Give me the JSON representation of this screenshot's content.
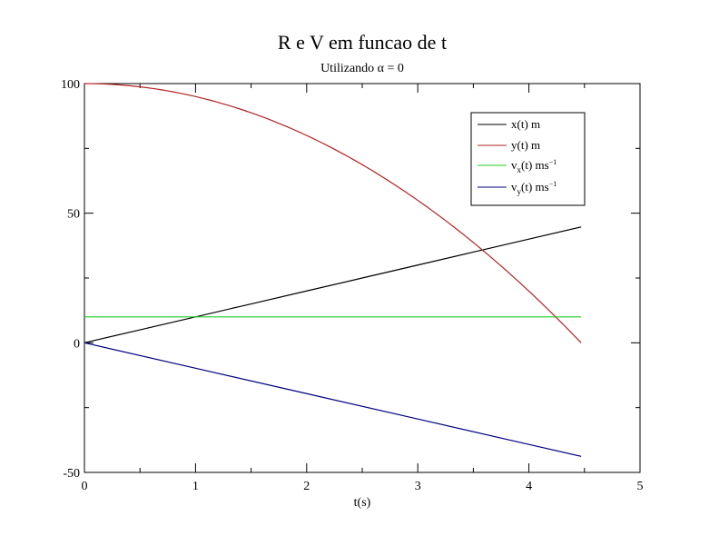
{
  "chart_data": {
    "type": "line",
    "title": "R e V em funcao de t",
    "subtitle_prefix": "Utilizando ",
    "subtitle_symbol": "α",
    "subtitle_suffix": " = 0",
    "xlabel": "t(s)",
    "ylabel": "",
    "xlim": [
      0,
      5
    ],
    "ylim": [
      -50,
      100
    ],
    "x_major_ticks": [
      0,
      1,
      2,
      3,
      4,
      5
    ],
    "y_major_ticks": [
      -50,
      0,
      50,
      100
    ],
    "x_tick_labels": [
      "0",
      "1",
      "2",
      "3",
      "4",
      "5"
    ],
    "y_tick_labels": [
      "-50",
      "0",
      "50",
      "100"
    ],
    "legend_position": "top-right",
    "series": [
      {
        "name": "x(t) m",
        "label_main": "x(t) m",
        "color": "#000000",
        "x": [
          0,
          0.5,
          1.0,
          1.5,
          2.0,
          2.5,
          3.0,
          3.5,
          4.0,
          4.47
        ],
        "y": [
          0,
          5,
          10,
          15,
          20,
          25,
          30,
          35,
          40,
          44.7
        ]
      },
      {
        "name": "y(t) m",
        "label_main": "y(t) m",
        "color": "#b22222",
        "x": [
          0,
          0.5,
          1.0,
          1.5,
          2.0,
          2.5,
          3.0,
          3.5,
          4.0,
          4.47
        ],
        "y": [
          100,
          98.8,
          95.1,
          89.0,
          80.4,
          69.4,
          55.9,
          40.0,
          21.6,
          0
        ]
      },
      {
        "name": "vx(t) ms-1",
        "label_pre": "v",
        "label_sub": "x",
        "label_mid": "(t) ms",
        "label_sup": "−1",
        "color": "#22cc22",
        "x": [
          0,
          4.47
        ],
        "y": [
          10,
          10
        ]
      },
      {
        "name": "vy(t) ms-1",
        "label_pre": "v",
        "label_sub": "y",
        "label_mid": "(t) ms",
        "label_sup": "−1",
        "color": "#000080",
        "x": [
          0,
          1.0,
          2.0,
          3.0,
          4.0,
          4.47
        ],
        "y": [
          0,
          -9.8,
          -19.6,
          -29.4,
          -39.2,
          -43.8
        ]
      }
    ]
  }
}
